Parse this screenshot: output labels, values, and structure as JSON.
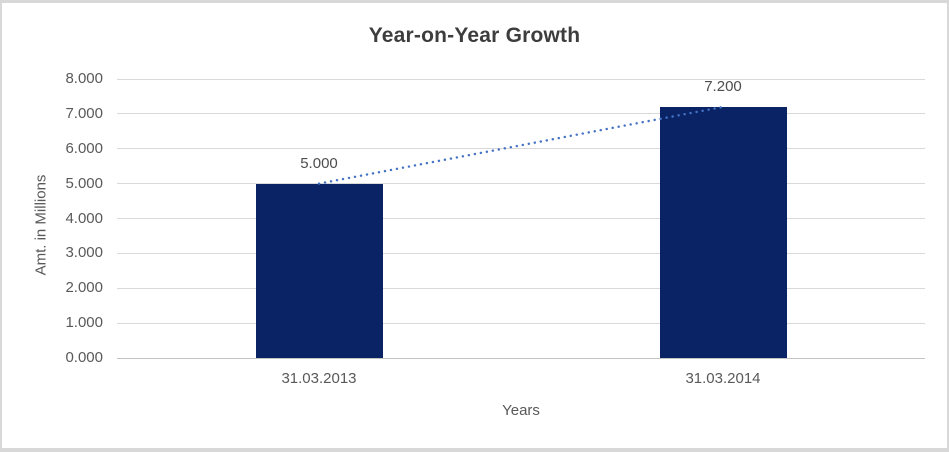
{
  "chart": {
    "title": "Year-on-Year Growth",
    "y_axis_title": "Amt. in Millions",
    "x_axis_title": "Years"
  },
  "chart_data": {
    "type": "bar",
    "title": "Year-on-Year Growth",
    "xlabel": "Years",
    "ylabel": "Amt. in Millions",
    "categories": [
      "31.03.2013",
      "31.03.2014"
    ],
    "values": [
      5.0,
      7.2
    ],
    "data_labels": [
      "5.000",
      "7.200"
    ],
    "y_ticks": [
      0,
      1,
      2,
      3,
      4,
      5,
      6,
      7,
      8
    ],
    "y_tick_labels": [
      "0.000",
      "1.000",
      "2.000",
      "3.000",
      "4.000",
      "5.000",
      "6.000",
      "7.000",
      "8.000"
    ],
    "ylim": [
      0,
      8
    ],
    "grid": "horizontal",
    "legend": "none",
    "trendline": {
      "style": "dotted",
      "from_category_index": 0,
      "from_value": 5.0,
      "to_category_index": 1,
      "to_value": 7.2
    },
    "colors": {
      "bar": "#0a2364",
      "trendline": "#4472c4",
      "gridline": "#d9d9d9",
      "axis_line": "#c3c3c3",
      "title_text": "#3d3d3d",
      "axis_text": "#595959",
      "label_text": "#4d4d4d",
      "frame_border": "#d8d8d8"
    }
  }
}
